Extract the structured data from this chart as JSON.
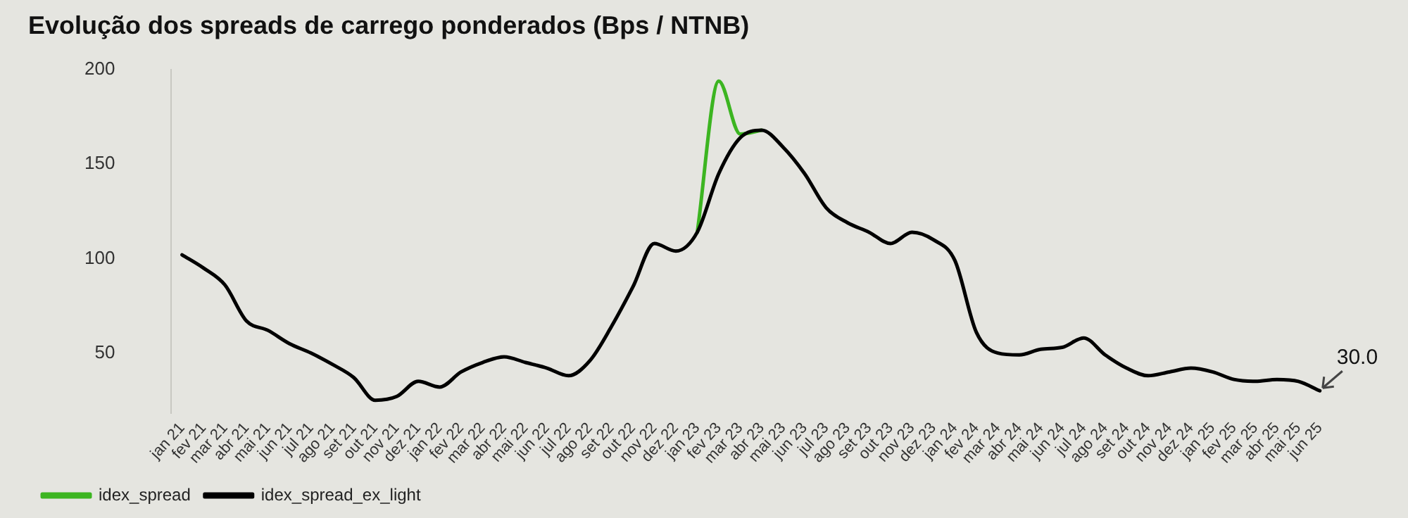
{
  "chart_data": {
    "type": "line",
    "title": "Evolução dos spreads de carrego ponderados (Bps / NTNB)",
    "categories": [
      "jan 21",
      "fev 21",
      "mar 21",
      "abr 21",
      "mai 21",
      "jun 21",
      "jul 21",
      "ago 21",
      "set 21",
      "out 21",
      "nov 21",
      "dez 21",
      "jan 22",
      "fev 22",
      "mar 22",
      "abr 22",
      "mai 22",
      "jun 22",
      "jul 22",
      "ago 22",
      "set 22",
      "out 22",
      "nov 22",
      "dez 22",
      "jan 23",
      "fev 23",
      "mar 23",
      "abr 23",
      "mai 23",
      "jun 23",
      "jul 23",
      "ago 23",
      "set 23",
      "out 23",
      "nov 23",
      "dez 23",
      "jan 24",
      "fev 24",
      "mar 24",
      "abr 24",
      "mai 24",
      "jun 24",
      "jul 24",
      "ago 24",
      "set 24",
      "out 24",
      "nov 24",
      "dez 24",
      "jan 25",
      "fev 25",
      "mar 25",
      "abr 25",
      "mai 25",
      "jun 25"
    ],
    "series": [
      {
        "name": "idex_spread",
        "color": "#3cb521",
        "values": [
          null,
          null,
          null,
          null,
          null,
          null,
          null,
          null,
          null,
          null,
          null,
          null,
          null,
          null,
          null,
          null,
          null,
          null,
          null,
          null,
          null,
          null,
          null,
          null,
          114,
          194,
          166,
          168,
          null,
          null,
          null,
          null,
          null,
          null,
          null,
          null,
          null,
          null,
          null,
          null,
          null,
          null,
          null,
          null,
          null,
          null,
          null,
          null,
          null,
          null,
          null,
          null,
          null,
          null
        ]
      },
      {
        "name": "idex_spread_ex_light",
        "color": "#000000",
        "values": [
          102,
          95,
          86,
          67,
          62,
          55,
          50,
          44,
          37,
          25,
          27,
          35,
          32,
          40,
          45,
          48,
          45,
          42,
          38,
          46,
          64,
          85,
          108,
          104,
          114,
          145,
          164,
          168,
          159,
          145,
          127,
          119,
          114,
          108,
          114,
          110,
          99,
          61,
          50,
          49,
          52,
          53,
          58,
          49,
          42,
          38,
          40,
          42,
          40,
          36,
          35,
          36,
          35,
          30
        ]
      }
    ],
    "ylim": [
      18,
      200
    ],
    "yticks": [
      50,
      100,
      150,
      200
    ],
    "grid": false,
    "legend": "bottom left",
    "marker": "none",
    "annotations": [
      {
        "text": "30.0",
        "x": "jun 25",
        "y": 30
      }
    ]
  }
}
